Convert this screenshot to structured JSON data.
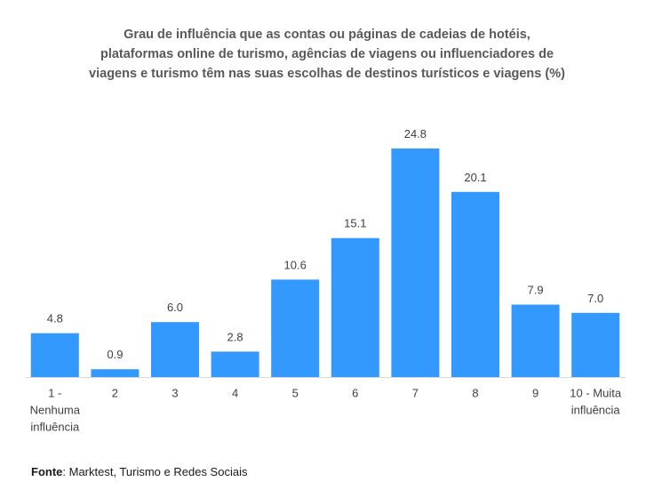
{
  "chart_data": {
    "type": "bar",
    "title_lines": [
      "Grau de influência que  as contas ou páginas de cadeias de hotéis,",
      "plataformas online de turismo, agências de viagens ou influenciadores de",
      "viagens e turismo têm nas suas escolhas de destinos turísticos e viagens (%)"
    ],
    "categories": [
      [
        "1 -",
        "Nenhuma",
        "influência"
      ],
      [
        "2"
      ],
      [
        "3"
      ],
      [
        "4"
      ],
      [
        "5"
      ],
      [
        "6"
      ],
      [
        "7"
      ],
      [
        "8"
      ],
      [
        "9"
      ],
      [
        "10 - Muita",
        "influência"
      ]
    ],
    "values": [
      4.8,
      0.9,
      6.0,
      2.8,
      10.6,
      15.1,
      24.8,
      20.1,
      7.9,
      7.0
    ],
    "value_labels": [
      "4.8",
      "0.9",
      "6.0",
      "2.8",
      "10.6",
      "15.1",
      "24.8",
      "20.1",
      "7.9",
      "7.0"
    ],
    "ylim": [
      0,
      24.8
    ],
    "bar_color": "#3399ff",
    "xlabel": "",
    "ylabel": "",
    "grid": false
  },
  "source": {
    "label": "Fonte",
    "text": ": Marktest, Turismo e Redes Sociais"
  }
}
